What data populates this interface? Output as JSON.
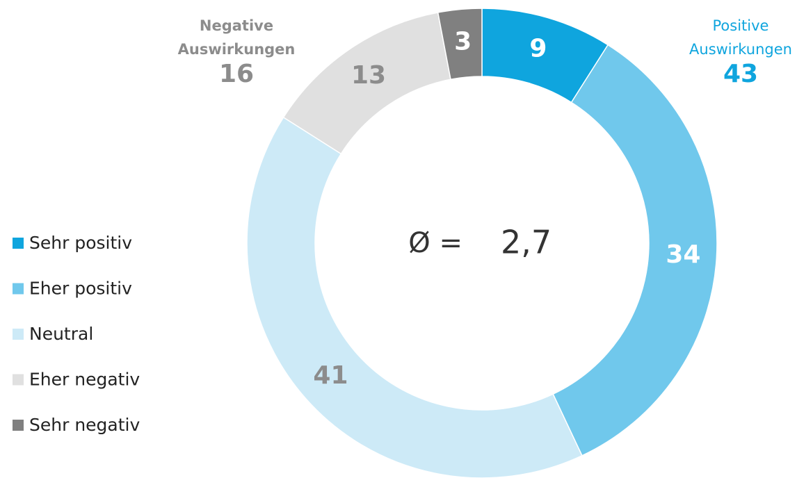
{
  "chart_data": {
    "type": "donut",
    "categories": [
      "Sehr positiv",
      "Eher positiv",
      "Neutral",
      "Eher negativ",
      "Sehr negativ"
    ],
    "values": [
      9,
      34,
      41,
      13,
      3
    ],
    "colors": [
      "#0fa5de",
      "#70c8ec",
      "#cdeaf7",
      "#e0e0e0",
      "#808080"
    ],
    "label_colors": [
      "#ffffff",
      "#ffffff",
      "#8c8c8c",
      "#8c8c8c",
      "#ffffff"
    ],
    "center_symbol": "Ø =",
    "center_value": {
      "value": 2.7,
      "label": "2,7"
    },
    "annotations": [
      {
        "label": [
          "Negative",
          "Auswirkungen"
        ],
        "value": 16,
        "color": "#8c8c8c"
      },
      {
        "label": [
          "Positive",
          "Auswirkungen"
        ],
        "value": 43,
        "color": "#0fa5de"
      }
    ],
    "legend": "left"
  }
}
